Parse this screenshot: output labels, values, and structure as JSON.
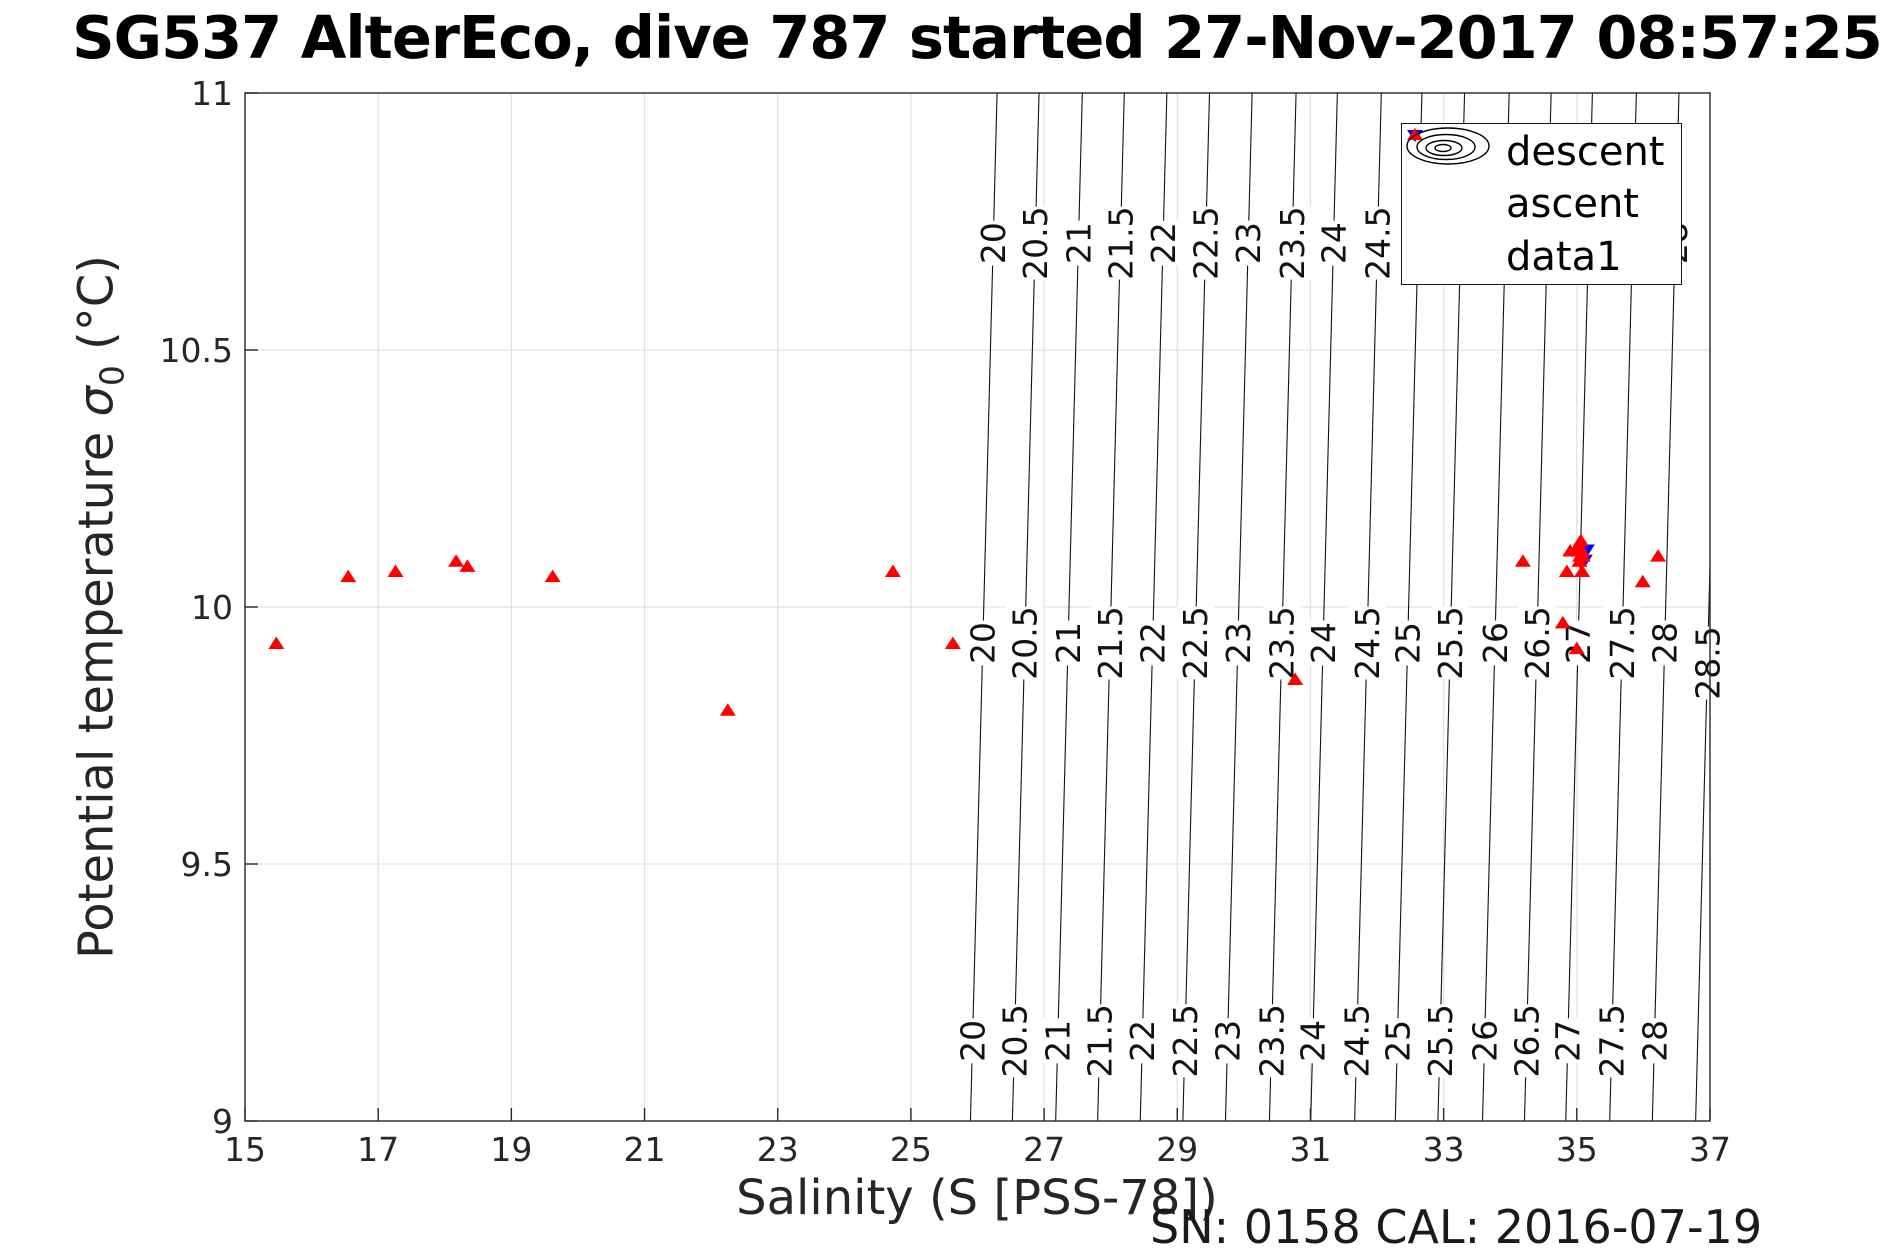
{
  "title": "SG537 AlterEco, dive 787 started 27-Nov-2017 08:57:25",
  "annotation": "SN: 0158  CAL: 2016-07-19",
  "ylabel_parts": {
    "prefix": "Potential temperature ",
    "sigma": "σ",
    "sub": "0",
    "suffix": " (°C)"
  },
  "legend": {
    "items": [
      {
        "label": "descent",
        "marker": "triangle-down",
        "color": "#0000ff"
      },
      {
        "label": "ascent",
        "marker": "triangle-up",
        "color": "#ff0000"
      },
      {
        "label": "data1",
        "marker": "contour-rings",
        "color": "#000000"
      }
    ]
  },
  "chart_data": {
    "type": "scatter",
    "title": "SG537 AlterEco, dive 787 started 27-Nov-2017 08:57:25",
    "xlabel": "Salinity (S [PSS-78])",
    "ylabel": "Potential temperature σ0 (°C)",
    "xlim": [
      15,
      37
    ],
    "ylim": [
      9,
      11
    ],
    "xticks": [
      15,
      17,
      19,
      21,
      23,
      25,
      27,
      29,
      31,
      33,
      35,
      37
    ],
    "yticks": [
      9,
      9.5,
      10,
      10.5,
      11
    ],
    "grid": true,
    "legend_position": "top-right",
    "series": [
      {
        "name": "descent",
        "marker": "triangle-down",
        "color": "#0000ff",
        "points": [
          [
            35.15,
            10.11
          ],
          [
            35.12,
            10.09
          ]
        ]
      },
      {
        "name": "ascent",
        "marker": "triangle-up",
        "color": "#ff0000",
        "points": [
          [
            15.47,
            9.93
          ],
          [
            16.55,
            10.06
          ],
          [
            17.26,
            10.07
          ],
          [
            18.17,
            10.09
          ],
          [
            18.34,
            10.08
          ],
          [
            19.62,
            10.06
          ],
          [
            22.25,
            9.8
          ],
          [
            24.73,
            10.07
          ],
          [
            25.63,
            9.93
          ],
          [
            30.77,
            9.86
          ],
          [
            34.19,
            10.09
          ],
          [
            34.9,
            10.11
          ],
          [
            34.85,
            10.07
          ],
          [
            34.79,
            9.97
          ],
          [
            35.0,
            9.92
          ],
          [
            35.08,
            10.07
          ],
          [
            35.02,
            10.12
          ],
          [
            35.02,
            10.11
          ],
          [
            35.05,
            10.1
          ],
          [
            35.08,
            10.11
          ],
          [
            35.04,
            10.09
          ],
          [
            35.09,
            10.1
          ],
          [
            35.06,
            10.13
          ],
          [
            36.22,
            10.1
          ],
          [
            35.99,
            10.05
          ]
        ]
      }
    ],
    "contours": {
      "name": "data1",
      "quantity": "sigma0 isopycnals",
      "levels": [
        20,
        20.5,
        21,
        21.5,
        22,
        22.5,
        23,
        23.5,
        24,
        24.5,
        25,
        25.5,
        26,
        26.5,
        27,
        27.5,
        28,
        28.5
      ],
      "s_at_t_mid": [
        26.08,
        26.71,
        27.36,
        27.99,
        28.63,
        29.27,
        29.91,
        30.57,
        31.19,
        31.85,
        32.46,
        33.1,
        33.77,
        34.4,
        35.02,
        35.68,
        36.32,
        36.97
      ],
      "t_mid": 9.93,
      "ds_dt": 0.2,
      "label_band_temps": [
        10.708,
        9.93,
        9.156
      ],
      "last_level_label_temp": 9.891,
      "line_color": "#111111"
    },
    "colors": {
      "grid": "#e2e2e2",
      "axis": "#262626",
      "tick_label": "#262626"
    }
  }
}
